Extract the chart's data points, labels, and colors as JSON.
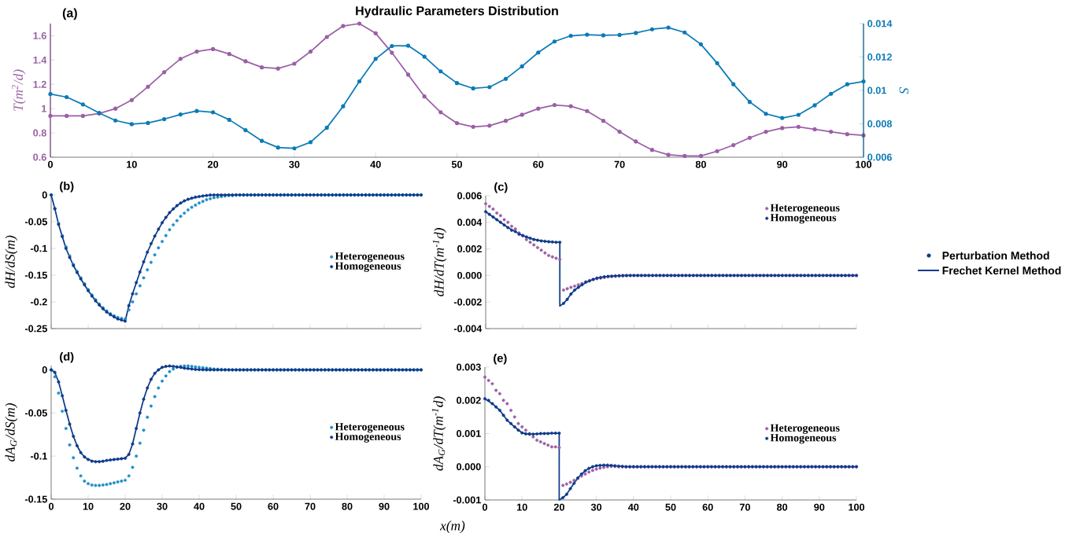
{
  "chart_data": [
    {
      "type": "line",
      "title": "Hydraulic Parameters Distribution",
      "annotations": [
        "(a)"
      ],
      "ylabel": "T(m$^{2}$/d)",
      "y2label": "S",
      "marker": "circle",
      "x": [
        0,
        2,
        4,
        6,
        8,
        10,
        12,
        14,
        16,
        18,
        20,
        22,
        24,
        26,
        28,
        30,
        32,
        34,
        36,
        38,
        40,
        42,
        44,
        46,
        48,
        50,
        52,
        54,
        56,
        58,
        60,
        62,
        64,
        66,
        68,
        70,
        72,
        74,
        76,
        78,
        80,
        82,
        84,
        86,
        88,
        90,
        92,
        94,
        96,
        98,
        100
      ],
      "xlim": [
        0,
        100
      ],
      "xticks": [
        0,
        10,
        20,
        30,
        40,
        50,
        60,
        70,
        80,
        90,
        100
      ],
      "ylim": [
        0.6,
        1.7
      ],
      "yticks": [
        0.6,
        0.8,
        1,
        1.2,
        1.4,
        1.6
      ],
      "y2lim": [
        0.006,
        0.014
      ],
      "y2ticks": [
        0.006,
        0.008,
        0.01,
        0.012,
        0.014
      ],
      "series": [
        {
          "color": "#9b5fa6",
          "values": [
            0.94,
            0.94,
            0.94,
            0.96,
            1.0,
            1.07,
            1.18,
            1.3,
            1.41,
            1.47,
            1.49,
            1.45,
            1.39,
            1.34,
            1.33,
            1.37,
            1.47,
            1.59,
            1.68,
            1.7,
            1.62,
            1.46,
            1.28,
            1.1,
            0.97,
            0.88,
            0.85,
            0.86,
            0.9,
            0.95,
            1.0,
            1.03,
            1.02,
            0.98,
            0.9,
            0.81,
            0.73,
            0.66,
            0.62,
            0.61,
            0.61,
            0.65,
            0.7,
            0.76,
            0.81,
            0.84,
            0.85,
            0.83,
            0.81,
            0.79,
            0.78
          ]
        },
        {
          "color": "#0b7bb6",
          "axis": "y2",
          "values": [
            0.00978,
            0.0096,
            0.00916,
            0.00865,
            0.0082,
            0.00798,
            0.00805,
            0.00828,
            0.00856,
            0.00877,
            0.00869,
            0.00824,
            0.00762,
            0.00698,
            0.00658,
            0.00653,
            0.0069,
            0.00777,
            0.00905,
            0.01054,
            0.01189,
            0.01266,
            0.01268,
            0.01202,
            0.01114,
            0.01044,
            0.01012,
            0.0102,
            0.01069,
            0.01144,
            0.01227,
            0.01293,
            0.01327,
            0.01334,
            0.0133,
            0.01332,
            0.01344,
            0.01366,
            0.01376,
            0.01347,
            0.01276,
            0.01163,
            0.01037,
            0.00931,
            0.0086,
            0.00835,
            0.00854,
            0.00911,
            0.0098,
            0.01037,
            0.01054
          ]
        }
      ]
    },
    {
      "type": "scatter",
      "title": "(b)",
      "ylabel": "dH/dS(m)",
      "marker": "circle",
      "legend": "right",
      "tick_labels": "y",
      "x": [
        0,
        1,
        2,
        3,
        4,
        5,
        6,
        7,
        8,
        9,
        10,
        11,
        12,
        13,
        14,
        15,
        16,
        17,
        18,
        19,
        20,
        21,
        22,
        23,
        24,
        25,
        26,
        27,
        28,
        29,
        30,
        31,
        32,
        33,
        34,
        35,
        36,
        37,
        38,
        39,
        40,
        41,
        42,
        43,
        44,
        45,
        46,
        47,
        48,
        49,
        50,
        51,
        52,
        53,
        54,
        55,
        56,
        57,
        58,
        59,
        60,
        61,
        62,
        63,
        64,
        65,
        66,
        67,
        68,
        69,
        70,
        71,
        72,
        73,
        74,
        75,
        76,
        77,
        78,
        79,
        80,
        81,
        82,
        83,
        84,
        85,
        86,
        87,
        88,
        89,
        90,
        91,
        92,
        93,
        94,
        95,
        96,
        97,
        98,
        99,
        100
      ],
      "xlim": [
        0,
        100
      ],
      "xticks": [
        0,
        10,
        20,
        30,
        40,
        50,
        60,
        70,
        80,
        90,
        100
      ],
      "ylim": [
        -0.25,
        0
      ],
      "yticks": [
        -0.25,
        -0.2,
        -0.15,
        -0.1,
        -0.05,
        0
      ],
      "series": [
        {
          "name": "Heterogeneous",
          "color": "#1e8fc8",
          "values": [
            0,
            -0.025,
            -0.053,
            -0.076,
            -0.097,
            -0.114,
            -0.13,
            -0.143,
            -0.155,
            -0.166,
            -0.177,
            -0.187,
            -0.196,
            -0.204,
            -0.211,
            -0.217,
            -0.222,
            -0.226,
            -0.229,
            -0.231,
            -0.232,
            -0.215,
            -0.2,
            -0.185,
            -0.17,
            -0.155,
            -0.14,
            -0.126,
            -0.112,
            -0.099,
            -0.087,
            -0.076,
            -0.065,
            -0.056,
            -0.048,
            -0.04,
            -0.034,
            -0.028,
            -0.023,
            -0.019,
            -0.015,
            -0.012,
            -0.009,
            -0.007,
            -0.005,
            -0.004,
            -0.003,
            -0.002,
            -0.001,
            -0.001,
            0,
            0,
            0,
            0,
            0,
            0,
            0,
            0,
            0,
            0,
            0,
            0,
            0,
            0,
            0,
            0,
            0,
            0,
            0,
            0,
            0,
            0,
            0,
            0,
            0,
            0,
            0,
            0,
            0,
            0,
            0,
            0,
            0,
            0,
            0,
            0,
            0,
            0,
            0,
            0,
            0,
            0,
            0,
            0,
            0,
            0,
            0,
            0,
            0,
            0,
            0
          ]
        },
        {
          "name": "Homogeneous",
          "color": "#0d3a8a",
          "values": [
            0,
            -0.026,
            -0.055,
            -0.078,
            -0.1,
            -0.117,
            -0.132,
            -0.145,
            -0.157,
            -0.168,
            -0.179,
            -0.189,
            -0.198,
            -0.206,
            -0.213,
            -0.219,
            -0.224,
            -0.228,
            -0.232,
            -0.234,
            -0.236,
            -0.207,
            -0.185,
            -0.164,
            -0.144,
            -0.125,
            -0.107,
            -0.091,
            -0.077,
            -0.064,
            -0.052,
            -0.042,
            -0.033,
            -0.026,
            -0.02,
            -0.015,
            -0.011,
            -0.008,
            -0.006,
            -0.004,
            -0.003,
            -0.002,
            -0.001,
            0,
            0,
            0,
            0,
            0,
            0,
            0,
            0,
            0,
            0,
            0,
            0,
            0,
            0,
            0,
            0,
            0,
            0,
            0,
            0,
            0,
            0,
            0,
            0,
            0,
            0,
            0,
            0,
            0,
            0,
            0,
            0,
            0,
            0,
            0,
            0,
            0,
            0,
            0,
            0,
            0,
            0,
            0,
            0,
            0,
            0,
            0,
            0,
            0,
            0,
            0,
            0,
            0,
            0,
            0,
            0,
            0,
            0
          ]
        },
        {
          "type": "line",
          "color": "#0d3a8a",
          "marker": "none",
          "line_style": "solid",
          "x": [
            0,
            1,
            2,
            4,
            6,
            8,
            10,
            12,
            14,
            16,
            18,
            20,
            21,
            22,
            24,
            26,
            28,
            30,
            32,
            34,
            36,
            38,
            40,
            42,
            45,
            50,
            100
          ],
          "values": [
            0,
            -0.026,
            -0.055,
            -0.1,
            -0.132,
            -0.157,
            -0.179,
            -0.198,
            -0.213,
            -0.224,
            -0.232,
            -0.236,
            -0.207,
            -0.185,
            -0.144,
            -0.107,
            -0.077,
            -0.052,
            -0.033,
            -0.02,
            -0.011,
            -0.006,
            -0.003,
            -0.001,
            0,
            0,
            0
          ]
        }
      ]
    },
    {
      "type": "scatter",
      "title": "(c)",
      "ylabel": "dH/dT(m$^{-1}$d)",
      "marker": "circle",
      "legend": "top right",
      "tick_labels": "y",
      "x": [
        0,
        1,
        2,
        3,
        4,
        5,
        6,
        7,
        8,
        9,
        10,
        11,
        12,
        13,
        14,
        15,
        16,
        17,
        18,
        19,
        20,
        21,
        22,
        23,
        24,
        25,
        26,
        27,
        28,
        29,
        30,
        31,
        32,
        33,
        34,
        35,
        36,
        37,
        38,
        39,
        40,
        41,
        42,
        43,
        44,
        45,
        46,
        47,
        48,
        49,
        50,
        51,
        52,
        53,
        54,
        55,
        56,
        57,
        58,
        59,
        60,
        61,
        62,
        63,
        64,
        65,
        66,
        67,
        68,
        69,
        70,
        71,
        72,
        73,
        74,
        75,
        76,
        77,
        78,
        79,
        80,
        81,
        82,
        83,
        84,
        85,
        86,
        87,
        88,
        89,
        90,
        91,
        92,
        93,
        94,
        95,
        96,
        97,
        98,
        99,
        100
      ],
      "xlim": [
        0,
        100
      ],
      "xticks": [
        0,
        10,
        20,
        30,
        40,
        50,
        60,
        70,
        80,
        90,
        100
      ],
      "ylim": [
        -0.004,
        0.006
      ],
      "yticks": [
        {
          "value": -0.004,
          "label": "-0.004"
        },
        {
          "value": -0.002,
          "label": "-0.002"
        },
        {
          "value": 0,
          "label": "0.000"
        },
        {
          "value": 0.002,
          "label": "0.002"
        },
        {
          "value": 0.004,
          "label": "0.004"
        },
        {
          "value": 0.006,
          "label": "0.006"
        }
      ],
      "series": [
        {
          "name": "Heterogeneous",
          "color": "#9b5fa6",
          "values": [
            0.0054,
            0.0052,
            0.005,
            0.0047,
            0.0045,
            0.0042,
            0.004,
            0.0037,
            0.0035,
            0.0032,
            0.003,
            0.0027,
            0.0025,
            0.0023,
            0.0021,
            0.0019,
            0.0017,
            0.0015,
            0.0014,
            0.0013,
            0.0012,
            -0.0011,
            -0.001,
            -0.0009,
            -0.0008,
            -0.0007,
            -0.0006,
            -0.0005,
            -0.0004,
            -0.0003,
            -0.00025,
            -0.0002,
            -0.00015,
            -0.0001,
            -8e-05,
            -6e-05,
            -4e-05,
            -3e-05,
            -2e-05,
            -1e-05,
            0,
            0,
            0,
            0,
            0,
            0,
            0,
            0,
            0,
            0,
            0,
            0,
            0,
            0,
            0,
            0,
            0,
            0,
            0,
            0,
            0,
            0,
            0,
            0,
            0,
            0,
            0,
            0,
            0,
            0,
            0,
            0,
            0,
            0,
            0,
            0,
            0,
            0,
            0,
            0,
            0,
            0,
            0,
            0,
            0,
            0,
            0,
            0,
            0,
            0,
            0,
            0,
            0,
            0,
            0,
            0,
            0,
            0,
            0,
            0,
            0
          ]
        },
        {
          "name": "Homogeneous",
          "color": "#0d3a8a",
          "values": [
            0.0048,
            0.0046,
            0.0044,
            0.0042,
            0.004,
            0.0038,
            0.0036,
            0.0034,
            0.0033,
            0.0031,
            0.003,
            0.0029,
            0.0028,
            0.0027,
            0.00265,
            0.0026,
            0.00257,
            0.00254,
            0.00252,
            0.0025,
            0.0025,
            -0.0021,
            -0.0018,
            -0.0014,
            -0.0011,
            -0.0009,
            -0.0007,
            -0.0005,
            -0.0004,
            -0.0003,
            -0.0002,
            -0.00015,
            -0.0001,
            -7e-05,
            -5e-05,
            -3e-05,
            -2e-05,
            -1e-05,
            0,
            0,
            0,
            0,
            0,
            0,
            0,
            0,
            0,
            0,
            0,
            0,
            0,
            0,
            0,
            0,
            0,
            0,
            0,
            0,
            0,
            0,
            0,
            0,
            0,
            0,
            0,
            0,
            0,
            0,
            0,
            0,
            0,
            0,
            0,
            0,
            0,
            0,
            0,
            0,
            0,
            0,
            0,
            0,
            0,
            0,
            0,
            0,
            0,
            0,
            0,
            0,
            0,
            0,
            0,
            0,
            0,
            0,
            0,
            0,
            0,
            0,
            0
          ]
        },
        {
          "type": "line",
          "color": "#0d3a8a",
          "marker": "none",
          "line_style": "solid",
          "x": [
            0,
            2,
            4,
            6,
            8,
            10,
            12,
            14,
            16,
            18,
            20,
            20,
            21,
            22,
            23,
            24,
            26,
            28,
            30,
            32,
            35,
            38,
            45,
            100
          ],
          "values": [
            0.0048,
            0.0044,
            0.004,
            0.0036,
            0.0033,
            0.003,
            0.0028,
            0.00265,
            0.00257,
            0.00252,
            0.0025,
            -0.0023,
            -0.0021,
            -0.0018,
            -0.0014,
            -0.0011,
            -0.0007,
            -0.0004,
            -0.0002,
            -0.0001,
            -3e-05,
            0,
            0,
            0
          ]
        }
      ]
    },
    {
      "type": "scatter",
      "title": "(d)",
      "ylabel": "dA$_{G}$/dS(m)",
      "xlabel": "x(m)",
      "marker": "circle",
      "legend": "right",
      "x": [
        0,
        1,
        2,
        3,
        4,
        5,
        6,
        7,
        8,
        9,
        10,
        11,
        12,
        13,
        14,
        15,
        16,
        17,
        18,
        19,
        20,
        21,
        22,
        23,
        24,
        25,
        26,
        27,
        28,
        29,
        30,
        31,
        32,
        33,
        34,
        35,
        36,
        37,
        38,
        39,
        40,
        41,
        42,
        43,
        44,
        45,
        46,
        47,
        48,
        49,
        50,
        51,
        52,
        53,
        54,
        55,
        56,
        57,
        58,
        59,
        60,
        61,
        62,
        63,
        64,
        65,
        66,
        67,
        68,
        69,
        70,
        71,
        72,
        73,
        74,
        75,
        76,
        77,
        78,
        79,
        80,
        81,
        82,
        83,
        84,
        85,
        86,
        87,
        88,
        89,
        90,
        91,
        92,
        93,
        94,
        95,
        96,
        97,
        98,
        99,
        100
      ],
      "xlim": [
        0,
        100
      ],
      "xticks": [
        0,
        10,
        20,
        30,
        40,
        50,
        60,
        70,
        80,
        90,
        100
      ],
      "ylim": [
        -0.15,
        0.005
      ],
      "yticks": [
        -0.15,
        -0.1,
        -0.05,
        0
      ],
      "series": [
        {
          "name": "Heterogeneous",
          "color": "#1e8fc8",
          "values": [
            0,
            -0.008,
            -0.027,
            -0.048,
            -0.068,
            -0.087,
            -0.102,
            -0.114,
            -0.123,
            -0.129,
            -0.132,
            -0.1335,
            -0.134,
            -0.134,
            -0.1335,
            -0.133,
            -0.132,
            -0.131,
            -0.13,
            -0.129,
            -0.128,
            -0.123,
            -0.113,
            -0.1,
            -0.085,
            -0.07,
            -0.055,
            -0.042,
            -0.031,
            -0.021,
            -0.013,
            -0.007,
            -0.002,
            0.001,
            0.003,
            0.004,
            0.0045,
            0.0045,
            0.004,
            0.0035,
            0.003,
            0.0025,
            0.002,
            0.0015,
            0.001,
            0.0007,
            0.0005,
            0.0003,
            0.0001,
            0,
            0,
            0,
            0,
            0,
            0,
            0,
            0,
            0,
            0,
            0,
            0,
            0,
            0,
            0,
            0,
            0,
            0,
            0,
            0,
            0,
            0,
            0,
            0,
            0,
            0,
            0,
            0,
            0,
            0,
            0,
            0,
            0,
            0,
            0,
            0,
            0,
            0,
            0,
            0,
            0,
            0,
            0,
            0,
            0,
            0,
            0,
            0,
            0,
            0,
            0,
            0
          ]
        },
        {
          "name": "Homogeneous",
          "color": "#0d3a8a",
          "values": [
            0,
            -0.003,
            -0.014,
            -0.03,
            -0.047,
            -0.063,
            -0.077,
            -0.088,
            -0.096,
            -0.101,
            -0.104,
            -0.106,
            -0.1065,
            -0.1065,
            -0.106,
            -0.105,
            -0.1045,
            -0.104,
            -0.1035,
            -0.103,
            -0.1025,
            -0.098,
            -0.086,
            -0.068,
            -0.05,
            -0.034,
            -0.021,
            -0.011,
            -0.004,
            0,
            0.003,
            0.004,
            0.0045,
            0.004,
            0.0035,
            0.003,
            0.002,
            0.0015,
            0.001,
            0.0005,
            0.0003,
            0.0001,
            0,
            0,
            0,
            0,
            0,
            0,
            0,
            0,
            0,
            0,
            0,
            0,
            0,
            0,
            0,
            0,
            0,
            0,
            0,
            0,
            0,
            0,
            0,
            0,
            0,
            0,
            0,
            0,
            0,
            0,
            0,
            0,
            0,
            0,
            0,
            0,
            0,
            0,
            0,
            0,
            0,
            0,
            0,
            0,
            0,
            0,
            0,
            0,
            0,
            0,
            0,
            0,
            0,
            0,
            0,
            0,
            0,
            0,
            0
          ]
        },
        {
          "type": "line",
          "color": "#0d3a8a",
          "marker": "none",
          "line_style": "solid",
          "x": [
            0,
            1,
            2,
            3,
            4,
            5,
            6,
            7,
            8,
            9,
            10,
            12,
            14,
            16,
            18,
            20,
            21,
            22,
            23,
            24,
            25,
            26,
            27,
            28,
            29,
            30,
            32,
            34,
            36,
            38,
            40,
            42,
            50,
            100
          ],
          "values": [
            0,
            -0.003,
            -0.014,
            -0.03,
            -0.047,
            -0.063,
            -0.077,
            -0.088,
            -0.096,
            -0.101,
            -0.104,
            -0.1065,
            -0.106,
            -0.1045,
            -0.1035,
            -0.1025,
            -0.098,
            -0.086,
            -0.068,
            -0.05,
            -0.034,
            -0.021,
            -0.011,
            -0.004,
            0,
            0.003,
            0.0045,
            0.0035,
            0.002,
            0.001,
            0.0003,
            0,
            0,
            0
          ]
        }
      ]
    },
    {
      "type": "scatter",
      "title": "(e)",
      "ylabel": "dA$_{G}$/dT(m$^{-1}$d)",
      "marker": "circle",
      "legend": "right",
      "x": [
        0,
        1,
        2,
        3,
        4,
        5,
        6,
        7,
        8,
        9,
        10,
        11,
        12,
        13,
        14,
        15,
        16,
        17,
        18,
        19,
        20,
        21,
        22,
        23,
        24,
        25,
        26,
        27,
        28,
        29,
        30,
        31,
        32,
        33,
        34,
        35,
        36,
        37,
        38,
        39,
        40,
        41,
        42,
        43,
        44,
        45,
        46,
        47,
        48,
        49,
        50,
        51,
        52,
        53,
        54,
        55,
        56,
        57,
        58,
        59,
        60,
        61,
        62,
        63,
        64,
        65,
        66,
        67,
        68,
        69,
        70,
        71,
        72,
        73,
        74,
        75,
        76,
        77,
        78,
        79,
        80,
        81,
        82,
        83,
        84,
        85,
        86,
        87,
        88,
        89,
        90,
        91,
        92,
        93,
        94,
        95,
        96,
        97,
        98,
        99,
        100
      ],
      "xlim": [
        0,
        100
      ],
      "xticks": [
        0,
        10,
        20,
        30,
        40,
        50,
        60,
        70,
        80,
        90,
        100
      ],
      "ylim": [
        -0.001,
        0.003
      ],
      "yticks": [
        {
          "value": -0.001,
          "label": "-0.001"
        },
        {
          "value": 0,
          "label": "0.000"
        },
        {
          "value": 0.001,
          "label": "0.001"
        },
        {
          "value": 0.002,
          "label": "0.002"
        },
        {
          "value": 0.003,
          "label": "0.003"
        }
      ],
      "series": [
        {
          "name": "Heterogeneous",
          "color": "#9b5fa6",
          "values": [
            0.0027,
            0.0026,
            0.0025,
            0.0023,
            0.0022,
            0.002,
            0.0019,
            0.0017,
            0.0015,
            0.0013,
            0.0012,
            0.0011,
            0.001,
            0.0009,
            0.0008,
            0.00075,
            0.0007,
            0.00065,
            0.0006,
            0.0006,
            0.00058,
            -0.00056,
            -0.00052,
            -0.00047,
            -0.00041,
            -0.00035,
            -0.00028,
            -0.00022,
            -0.00016,
            -0.00011,
            -7e-05,
            -4e-05,
            -2e-05,
            0,
            1e-05,
            1e-05,
            0,
            0,
            0,
            0,
            0,
            0,
            0,
            0,
            0,
            0,
            0,
            0,
            0,
            0,
            0,
            0,
            0,
            0,
            0,
            0,
            0,
            0,
            0,
            0,
            0,
            0,
            0,
            0,
            0,
            0,
            0,
            0,
            0,
            0,
            0,
            0,
            0,
            0,
            0,
            0,
            0,
            0,
            0,
            0,
            0,
            0,
            0,
            0,
            0,
            0,
            0,
            0,
            0,
            0,
            0,
            0,
            0,
            0,
            0,
            0,
            0,
            0,
            0,
            0,
            0
          ]
        },
        {
          "name": "Homogeneous",
          "color": "#0d3a8a",
          "values": [
            0.00205,
            0.002,
            0.0019,
            0.0018,
            0.0017,
            0.00155,
            0.0014,
            0.0013,
            0.0012,
            0.0011,
            0.00102,
            0.00099,
            0.00098,
            0.00098,
            0.00099,
            0.001,
            0.001,
            0.001,
            0.00101,
            0.00101,
            0.00101,
            -0.00093,
            -0.00083,
            -0.00066,
            -0.0005,
            -0.00034,
            -0.00022,
            -0.00012,
            -5e-05,
            0,
            3e-05,
            4e-05,
            5e-05,
            5e-05,
            4e-05,
            3e-05,
            2e-05,
            1e-05,
            0,
            0,
            0,
            0,
            0,
            0,
            0,
            0,
            0,
            0,
            0,
            0,
            0,
            0,
            0,
            0,
            0,
            0,
            0,
            0,
            0,
            0,
            0,
            0,
            0,
            0,
            0,
            0,
            0,
            0,
            0,
            0,
            0,
            0,
            0,
            0,
            0,
            0,
            0,
            0,
            0,
            0,
            0,
            0,
            0,
            0,
            0,
            0,
            0,
            0,
            0,
            0,
            0,
            0,
            0,
            0,
            0,
            0,
            0,
            0,
            0,
            0,
            0
          ]
        },
        {
          "type": "line",
          "color": "#0d3a8a",
          "marker": "none",
          "line_style": "solid",
          "x": [
            0,
            2,
            4,
            6,
            8,
            10,
            12,
            14,
            16,
            18,
            20,
            20,
            21,
            22,
            23,
            24,
            25,
            26,
            27,
            28,
            29,
            30,
            32,
            34,
            36,
            38,
            50,
            100
          ],
          "values": [
            0.00205,
            0.0019,
            0.0017,
            0.0014,
            0.0012,
            0.00102,
            0.00098,
            0.00099,
            0.001,
            0.00101,
            0.00101,
            -0.001,
            -0.00093,
            -0.00083,
            -0.00066,
            -0.0005,
            -0.00034,
            -0.00022,
            -0.00012,
            -5e-05,
            0,
            3e-05,
            5e-05,
            4e-05,
            2e-05,
            0,
            0,
            0
          ]
        }
      ]
    },
    {
      "type": "other",
      "series": [
        {
          "name": "Perturbation Method",
          "type": "scatter",
          "color": "#0d3a8a"
        },
        {
          "name": "Frechet Kernel Method",
          "type": "line",
          "color": "#0d3a8a"
        }
      ]
    }
  ]
}
